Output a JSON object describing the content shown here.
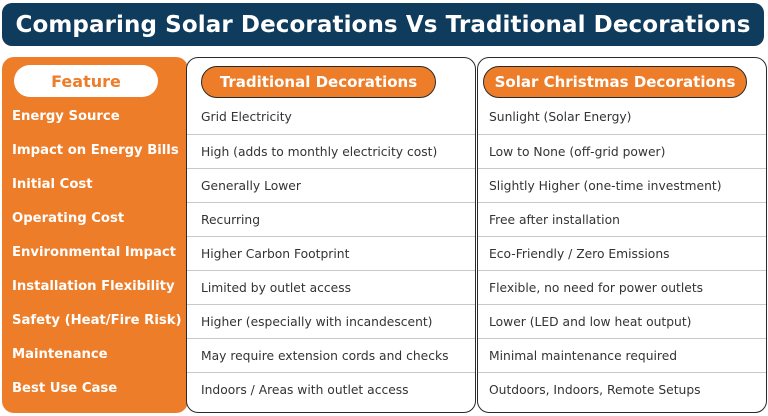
{
  "title": "Comparing Solar Decorations Vs Traditional Decorations",
  "headers": {
    "feature": "Feature",
    "traditional": "Traditional Decorations",
    "solar": "Solar Christmas Decorations"
  },
  "rows": [
    {
      "feature": "Energy Source",
      "traditional": "Grid Electricity",
      "solar": "Sunlight (Solar Energy)"
    },
    {
      "feature": "Impact on Energy Bills",
      "traditional": "High (adds to monthly electricity cost)",
      "solar": "Low to None (off-grid power)"
    },
    {
      "feature": "Initial Cost",
      "traditional": "Generally Lower",
      "solar": "Slightly Higher (one-time investment)"
    },
    {
      "feature": "Operating Cost",
      "traditional": "Recurring",
      "solar": "Free after installation"
    },
    {
      "feature": "Environmental Impact",
      "traditional": "Higher Carbon Footprint",
      "solar": "Eco-Friendly / Zero Emissions"
    },
    {
      "feature": "Installation Flexibility",
      "traditional": "Limited by outlet access",
      "solar": "Flexible, no need for power outlets"
    },
    {
      "feature": "Safety (Heat/Fire Risk)",
      "traditional": "Higher (especially with incandescent)",
      "solar": "Lower (LED and low heat output)"
    },
    {
      "feature": "Maintenance",
      "traditional": "May require extension cords and checks",
      "solar": "Minimal maintenance required"
    },
    {
      "feature": "Best Use Case",
      "traditional": "Indoors / Areas with outlet access",
      "solar": "Outdoors, Indoors, Remote Setups"
    }
  ],
  "colors": {
    "accent": "#ee7d2a",
    "title_bg": "#0f3b5c"
  }
}
